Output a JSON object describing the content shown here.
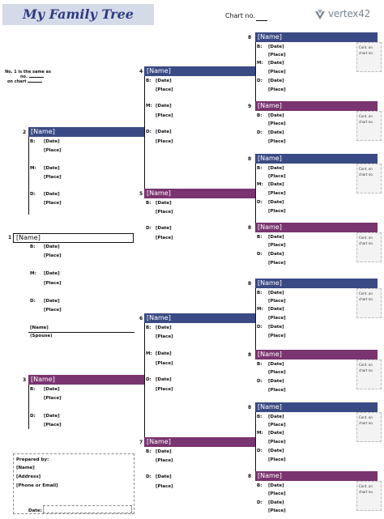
{
  "header": {
    "title": "My Family Tree",
    "chart_no_label": "Chart no.",
    "brand": "vertex42"
  },
  "note": {
    "line1": "No. 1 is the same as",
    "line2": "no.",
    "line3": "on chart"
  },
  "labels": {
    "birth": "B:",
    "marriage": "M:",
    "death": "D:",
    "date": "[Date]",
    "place": "[Place]",
    "name": "[Name]",
    "cont_line1": "Cont. on",
    "cont_line2": "chart no."
  },
  "spouse": {
    "name": "[Name]",
    "label": "(Spouse)"
  },
  "prepared": {
    "title": "Prepared by:",
    "name": "[Name]",
    "address": "[Address]",
    "contact": "[Phone or Email]",
    "date_label": "Date:"
  },
  "people": [
    {
      "num": "1",
      "name": "[Name]"
    },
    {
      "num": "2",
      "name": "[Name]"
    },
    {
      "num": "3",
      "name": "[Name]"
    },
    {
      "num": "4",
      "name": "[Name]"
    },
    {
      "num": "5",
      "name": "[Name]"
    },
    {
      "num": "6",
      "name": "[Name]"
    },
    {
      "num": "7",
      "name": "[Name]"
    },
    {
      "num": "8",
      "name": "[Name]"
    },
    {
      "num": "9",
      "name": "[Name]"
    },
    {
      "num": "8",
      "name": "[Name]"
    },
    {
      "num": "8",
      "name": "[Name]"
    },
    {
      "num": "8",
      "name": "[Name]"
    },
    {
      "num": "8",
      "name": "[Name]"
    },
    {
      "num": "8",
      "name": "[Name]"
    },
    {
      "num": "8",
      "name": "[Name]"
    }
  ],
  "colors": {
    "father": "#3a4a84",
    "mother": "#7a3470",
    "title_bg": "#d5dae8",
    "title_text": "#2e3a82"
  }
}
